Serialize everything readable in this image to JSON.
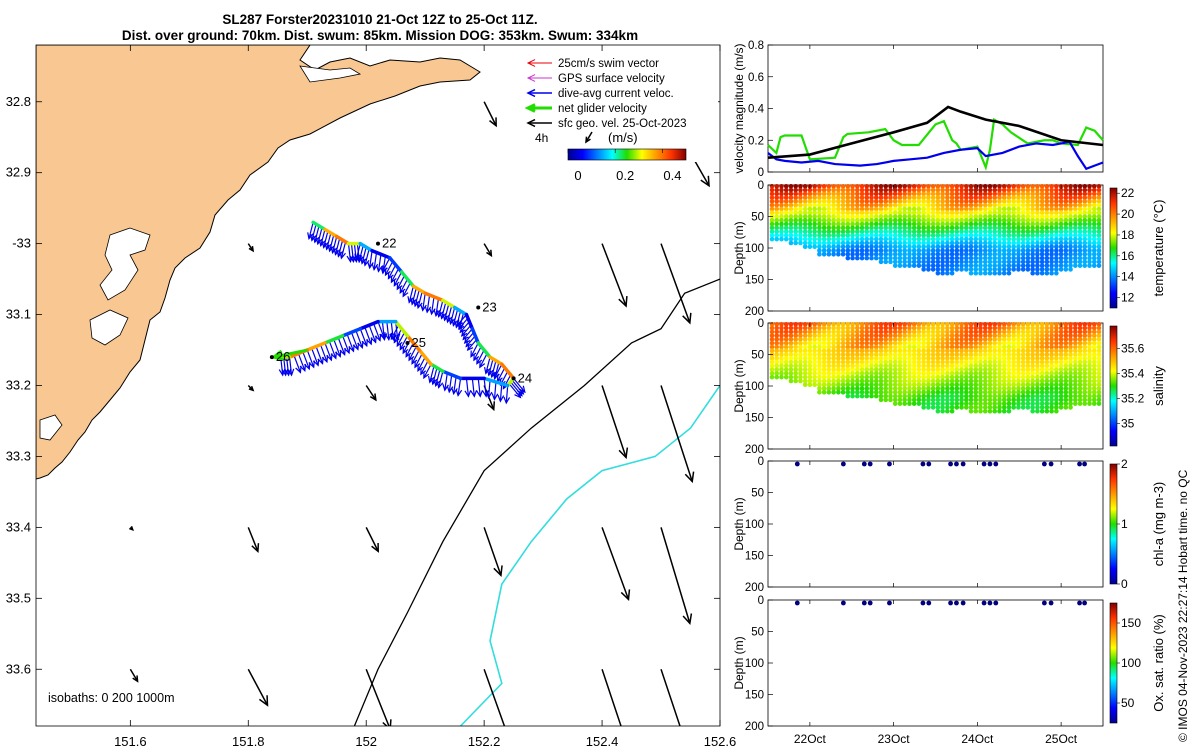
{
  "title": {
    "line1": "SL287 Forster20231010 21-Oct 12Z to 25-Oct 11Z.",
    "line2": "Dist. over ground: 70km. Dist. swum: 85km. Mission DOG: 353km. Swum: 334km"
  },
  "side_label": "© IMOS 04-Nov-2023 22:27:14 Hobart time. no QC",
  "colors": {
    "land": "#f9c892",
    "swim_vector": "#e8000b",
    "gps_velocity": "#cc33cc",
    "dive_current": "#0000ee",
    "net_glider": "#22dd00",
    "sfc_geo": "#000000",
    "isobath_200": "#000000",
    "isobath_1000": "#33dddd"
  },
  "chart_data": [
    {
      "type": "map",
      "xlim": [
        151.44,
        152.6
      ],
      "ylim": [
        -33.68,
        -32.72
      ],
      "x_ticks": [
        151.6,
        151.8,
        152,
        152.2,
        152.4,
        152.6
      ],
      "x_tick_labels": [
        "151.6",
        "151.8",
        "152",
        "152.2",
        "152.4",
        "152.6"
      ],
      "y_ticks": [
        -32.8,
        -32.9,
        -33.0,
        -33.1,
        -33.2,
        -33.3,
        -33.4,
        -33.5,
        -33.6
      ],
      "y_tick_labels": [
        "32.8",
        "32.9",
        "-33",
        "33.1",
        "33.2",
        "33.3",
        "33.4",
        "33.5",
        "33.6"
      ],
      "legend": {
        "position": "top-right",
        "items": [
          {
            "label": "25cm/s swim vector",
            "color_key": "swim_vector",
            "width": 1
          },
          {
            "label": "GPS surface velocity",
            "color_key": "gps_velocity",
            "width": 1
          },
          {
            "label": "dive-avg current veloc.",
            "color_key": "dive_current",
            "width": 1.5
          },
          {
            "label": "net glider velocity",
            "color_key": "net_glider",
            "width": 3
          },
          {
            "label": "sfc geo. vel. 25-Oct-2023",
            "color_key": "sfc_geo",
            "width": 1.5
          }
        ],
        "scale_label": "4h",
        "colorbar_unit": "(m/s)",
        "colorbar_ticks": [
          0,
          0.2,
          0.4
        ],
        "colorbar_range": [
          0,
          0.5
        ]
      },
      "isobaths_label": "isobaths: 0   200  1000m",
      "day_labels": [
        {
          "label": "22",
          "lon": 152.02,
          "lat": -33.0
        },
        {
          "label": "23",
          "lon": 152.19,
          "lat": -33.09
        },
        {
          "label": "24",
          "lon": 152.25,
          "lat": -33.19
        },
        {
          "label": "25",
          "lon": 152.07,
          "lat": -33.14
        },
        {
          "label": "26",
          "lon": 151.84,
          "lat": -33.16
        }
      ],
      "track": [
        [
          151.91,
          -32.97
        ],
        [
          151.93,
          -32.98
        ],
        [
          151.95,
          -32.99
        ],
        [
          151.97,
          -33.0
        ],
        [
          151.99,
          -33.0
        ],
        [
          152.01,
          -33.01
        ],
        [
          152.04,
          -33.02
        ],
        [
          152.06,
          -33.04
        ],
        [
          152.08,
          -33.06
        ],
        [
          152.1,
          -33.07
        ],
        [
          152.13,
          -33.08
        ],
        [
          152.15,
          -33.09
        ],
        [
          152.17,
          -33.1
        ],
        [
          152.18,
          -33.12
        ],
        [
          152.19,
          -33.14
        ],
        [
          152.21,
          -33.16
        ],
        [
          152.23,
          -33.17
        ],
        [
          152.25,
          -33.19
        ],
        [
          152.24,
          -33.2
        ],
        [
          152.2,
          -33.19
        ],
        [
          152.16,
          -33.19
        ],
        [
          152.13,
          -33.18
        ],
        [
          152.11,
          -33.17
        ],
        [
          152.09,
          -33.15
        ],
        [
          152.07,
          -33.13
        ],
        [
          152.05,
          -33.11
        ],
        [
          152.02,
          -33.11
        ],
        [
          151.99,
          -33.12
        ],
        [
          151.96,
          -33.13
        ],
        [
          151.93,
          -33.14
        ],
        [
          151.9,
          -33.15
        ],
        [
          151.87,
          -33.16
        ],
        [
          151.85,
          -33.16
        ]
      ],
      "current_vectors_every": 1,
      "geo_velocity_grid": [
        {
          "lon": 151.6,
          "lat": -32.8,
          "u": 0,
          "v": 0
        },
        {
          "lon": 152.2,
          "lat": -32.8,
          "u": 0.05,
          "v": -0.1
        },
        {
          "lon": 152.5,
          "lat": -32.8,
          "u": 0.2,
          "v": -0.35
        },
        {
          "lon": 151.8,
          "lat": -33.0,
          "u": 0.02,
          "v": -0.03
        },
        {
          "lon": 152.2,
          "lat": -33.0,
          "u": 0.03,
          "v": -0.05
        },
        {
          "lon": 152.4,
          "lat": -33.0,
          "u": 0.1,
          "v": -0.26
        },
        {
          "lon": 152.5,
          "lat": -33.0,
          "u": 0.12,
          "v": -0.33
        },
        {
          "lon": 151.8,
          "lat": -33.2,
          "u": 0.02,
          "v": -0.02
        },
        {
          "lon": 152.0,
          "lat": -33.2,
          "u": 0.04,
          "v": -0.06
        },
        {
          "lon": 152.2,
          "lat": -33.2,
          "u": 0.04,
          "v": -0.1
        },
        {
          "lon": 152.4,
          "lat": -33.2,
          "u": 0.1,
          "v": -0.3
        },
        {
          "lon": 152.5,
          "lat": -33.2,
          "u": 0.13,
          "v": -0.4
        },
        {
          "lon": 151.6,
          "lat": -33.4,
          "u": 0.01,
          "v": -0.01
        },
        {
          "lon": 151.8,
          "lat": -33.4,
          "u": 0.04,
          "v": -0.1
        },
        {
          "lon": 152.0,
          "lat": -33.4,
          "u": 0.05,
          "v": -0.1
        },
        {
          "lon": 152.2,
          "lat": -33.4,
          "u": 0.07,
          "v": -0.2
        },
        {
          "lon": 152.4,
          "lat": -33.4,
          "u": 0.11,
          "v": -0.3
        },
        {
          "lon": 152.5,
          "lat": -33.4,
          "u": 0.12,
          "v": -0.4
        },
        {
          "lon": 151.6,
          "lat": -33.6,
          "u": 0.03,
          "v": -0.05
        },
        {
          "lon": 151.8,
          "lat": -33.6,
          "u": 0.08,
          "v": -0.15
        },
        {
          "lon": 152.0,
          "lat": -33.6,
          "u": 0.1,
          "v": -0.25
        },
        {
          "lon": 152.2,
          "lat": -33.6,
          "u": 0.1,
          "v": -0.28
        },
        {
          "lon": 152.4,
          "lat": -33.6,
          "u": 0.1,
          "v": -0.3
        },
        {
          "lon": 152.5,
          "lat": -33.6,
          "u": 0.1,
          "v": -0.3
        }
      ],
      "isobath_200m": [
        [
          152.6,
          -33.05
        ],
        [
          152.54,
          -33.07
        ],
        [
          152.5,
          -33.12
        ],
        [
          152.45,
          -33.14
        ],
        [
          152.37,
          -33.2
        ],
        [
          152.28,
          -33.26
        ],
        [
          152.2,
          -33.32
        ],
        [
          152.13,
          -33.42
        ],
        [
          152.07,
          -33.52
        ],
        [
          152.02,
          -33.6
        ],
        [
          151.98,
          -33.68
        ]
      ],
      "isobath_1000m": [
        [
          152.6,
          -33.2
        ],
        [
          152.55,
          -33.26
        ],
        [
          152.49,
          -33.3
        ],
        [
          152.4,
          -33.32
        ],
        [
          152.34,
          -33.36
        ],
        [
          152.28,
          -33.42
        ],
        [
          152.23,
          -33.48
        ],
        [
          152.21,
          -33.56
        ],
        [
          152.23,
          -33.62
        ],
        [
          152.16,
          -33.68
        ]
      ]
    },
    {
      "type": "line",
      "ylabel": "velocity magnitude (m/s)",
      "ylim": [
        0,
        0.8
      ],
      "y_ticks": [
        0,
        0.2,
        0.4,
        0.6,
        0.8
      ],
      "xlim_days": [
        21.5,
        25.5
      ],
      "series": [
        {
          "name": "net glider velocity",
          "color_key": "net_glider",
          "x": [
            21.5,
            21.6,
            21.65,
            21.7,
            21.9,
            22.0,
            22.3,
            22.4,
            22.45,
            22.7,
            22.9,
            23.0,
            23.1,
            23.3,
            23.5,
            23.6,
            23.7,
            23.75,
            23.8,
            24.0,
            24.1,
            24.15,
            24.2,
            24.3,
            24.4,
            24.6,
            24.8,
            24.9,
            25.0,
            25.2,
            25.3,
            25.4,
            25.5
          ],
          "y": [
            0.17,
            0.12,
            0.22,
            0.23,
            0.23,
            0.08,
            0.09,
            0.22,
            0.24,
            0.25,
            0.27,
            0.2,
            0.17,
            0.17,
            0.3,
            0.32,
            0.2,
            0.18,
            0.14,
            0.16,
            0.03,
            0.14,
            0.33,
            0.3,
            0.25,
            0.18,
            0.2,
            0.2,
            0.18,
            0.17,
            0.28,
            0.26,
            0.2
          ]
        },
        {
          "name": "dive-avg current",
          "color_key": "dive_current",
          "x": [
            21.5,
            21.6,
            21.7,
            21.9,
            22.1,
            22.3,
            22.6,
            22.8,
            23.0,
            23.2,
            23.4,
            23.6,
            23.8,
            24.0,
            24.1,
            24.3,
            24.5,
            24.7,
            24.9,
            25.0,
            25.1,
            25.2,
            25.3,
            25.4,
            25.5
          ],
          "y": [
            0.12,
            0.08,
            0.07,
            0.06,
            0.07,
            0.05,
            0.04,
            0.05,
            0.07,
            0.08,
            0.09,
            0.12,
            0.14,
            0.15,
            0.1,
            0.12,
            0.16,
            0.18,
            0.17,
            0.18,
            0.19,
            0.1,
            0.02,
            0.04,
            0.06
          ]
        },
        {
          "name": "sfc geo. vel.",
          "color_key": "sfc_geo",
          "x": [
            21.5,
            22.0,
            22.5,
            23.0,
            23.4,
            23.65,
            23.8,
            24.1,
            24.5,
            25.0,
            25.5
          ],
          "y": [
            0.09,
            0.11,
            0.18,
            0.25,
            0.31,
            0.41,
            0.38,
            0.33,
            0.29,
            0.2,
            0.17
          ]
        }
      ]
    },
    {
      "type": "heatmap",
      "ylabel": "Depth (m)",
      "ylim": [
        200,
        0
      ],
      "y_ticks": [
        0,
        50,
        100,
        150,
        200
      ],
      "cbar_label": "temperature (°C)",
      "cbar_range": [
        11,
        22.5
      ],
      "cbar_ticks": [
        12,
        14,
        16,
        18,
        20,
        22
      ],
      "colormap": "jet",
      "max_depth_profile": [
        90,
        95,
        100,
        110,
        115,
        120,
        118,
        125,
        130,
        128,
        135,
        140,
        138,
        142,
        145,
        140,
        138,
        142,
        140,
        135,
        132,
        130
      ],
      "surface_value": 21.5,
      "bottom_value": 14,
      "thermocline_depth": 60
    },
    {
      "type": "heatmap",
      "ylabel": "Depth (m)",
      "ylim": [
        200,
        0
      ],
      "y_ticks": [
        0,
        50,
        100,
        150,
        200
      ],
      "cbar_label": "salinity",
      "cbar_range": [
        34.82,
        35.78
      ],
      "cbar_ticks": [
        35,
        35.2,
        35.4,
        35.6
      ],
      "colormap": "jet",
      "max_depth_profile": [
        90,
        95,
        100,
        110,
        115,
        120,
        118,
        125,
        130,
        128,
        135,
        140,
        138,
        142,
        145,
        140,
        138,
        142,
        140,
        135,
        132,
        130
      ],
      "surface_value": 35.58,
      "bottom_value": 35.3,
      "thermocline_depth": 70
    },
    {
      "type": "scatter",
      "ylabel": "Depth (m)",
      "ylim": [
        200,
        0
      ],
      "y_ticks": [
        0,
        50,
        100,
        150,
        200
      ],
      "cbar_label": "chl-a (mg m-3)",
      "cbar_range": [
        0,
        2
      ],
      "cbar_ticks": [
        0,
        1,
        2
      ],
      "colormap": "jet",
      "surface_points_days": [
        21.85,
        22.4,
        22.65,
        22.72,
        22.95,
        23.35,
        23.42,
        23.68,
        23.75,
        23.83,
        24.08,
        24.15,
        24.22,
        24.8,
        24.88,
        25.22,
        25.28
      ]
    },
    {
      "type": "scatter",
      "ylabel": "Depth (m)",
      "ylim": [
        200,
        0
      ],
      "y_ticks": [
        0,
        50,
        100,
        150,
        200
      ],
      "cbar_label": "Ox. sat. ratio (%)",
      "cbar_range": [
        25,
        175
      ],
      "cbar_ticks": [
        50,
        100,
        150
      ],
      "colormap": "jet",
      "x_ticks_days": [
        22,
        23,
        24,
        25
      ],
      "x_tick_labels": [
        "22Oct",
        "23Oct",
        "24Oct",
        "25Oct"
      ],
      "surface_points_days": [
        21.85,
        22.4,
        22.65,
        22.72,
        22.95,
        23.35,
        23.42,
        23.68,
        23.75,
        23.83,
        24.08,
        24.15,
        24.22,
        24.8,
        24.88,
        25.22,
        25.28
      ]
    }
  ]
}
